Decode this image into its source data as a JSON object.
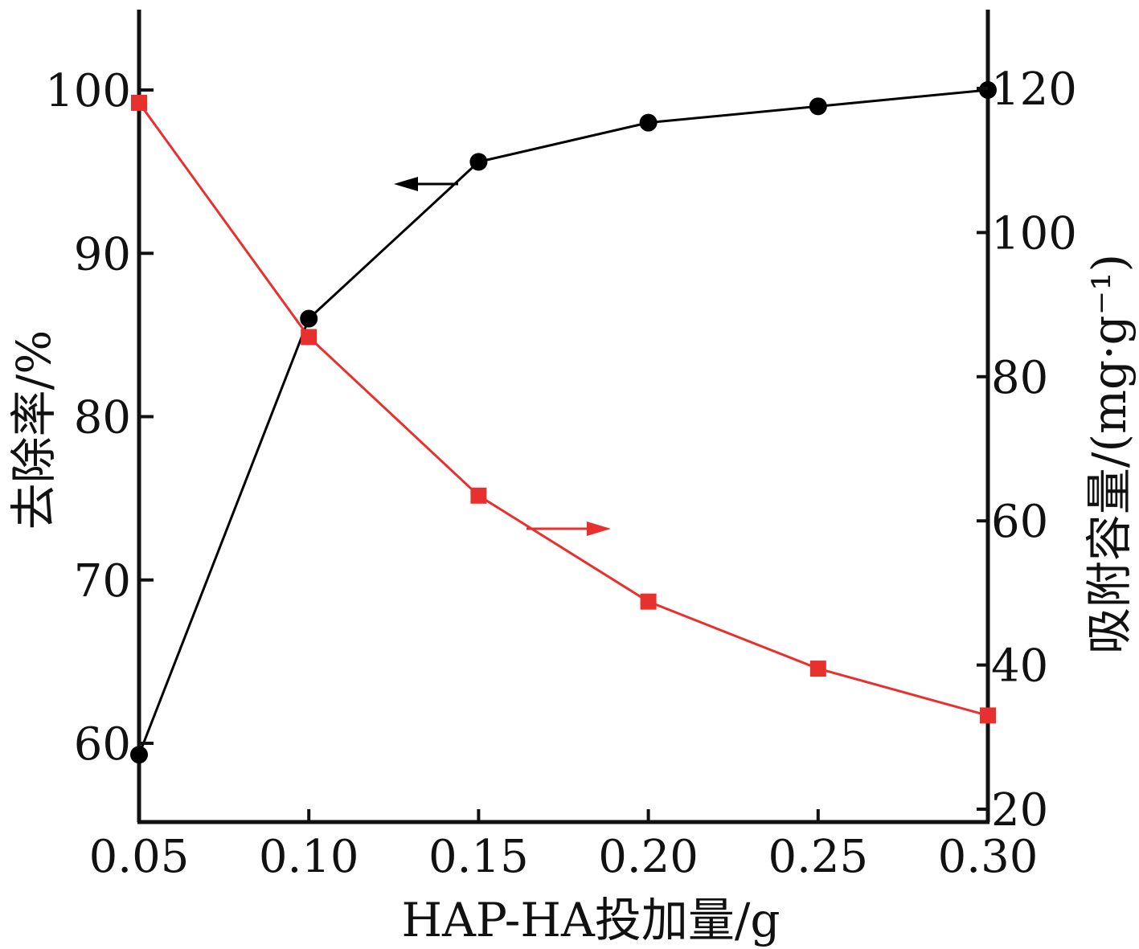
{
  "chart_data": {
    "type": "line",
    "title": "",
    "xlabel": "HAP-HA投加量/g",
    "ylabel": "去除率/%",
    "y2label": "吸附容量/(mg·g⁻¹)",
    "x_ticks": [
      "0.05",
      "0.10",
      "0.15",
      "0.20",
      "0.25",
      "0.30"
    ],
    "y_ticks": [
      "60",
      "70",
      "80",
      "90",
      "100"
    ],
    "y2_ticks": [
      "20",
      "40",
      "60",
      "80",
      "100",
      "120"
    ],
    "xlim": [
      0.05,
      0.3
    ],
    "ylim": [
      55,
      105
    ],
    "y2lim": [
      20,
      130
    ],
    "grid": false,
    "series": [
      {
        "axis": "left",
        "color": "#000000",
        "marker": "circle",
        "x": [
          0.05,
          0.1,
          0.15,
          0.2,
          0.25,
          0.3
        ],
        "values": [
          59.3,
          86.0,
          95.6,
          98.0,
          99.0,
          100.0
        ]
      },
      {
        "axis": "right",
        "color": "#e8312f",
        "marker": "square",
        "x": [
          0.05,
          0.1,
          0.15,
          0.2,
          0.25,
          0.3
        ],
        "values": [
          118.0,
          85.5,
          63.5,
          48.8,
          39.5,
          33.0
        ]
      }
    ]
  }
}
